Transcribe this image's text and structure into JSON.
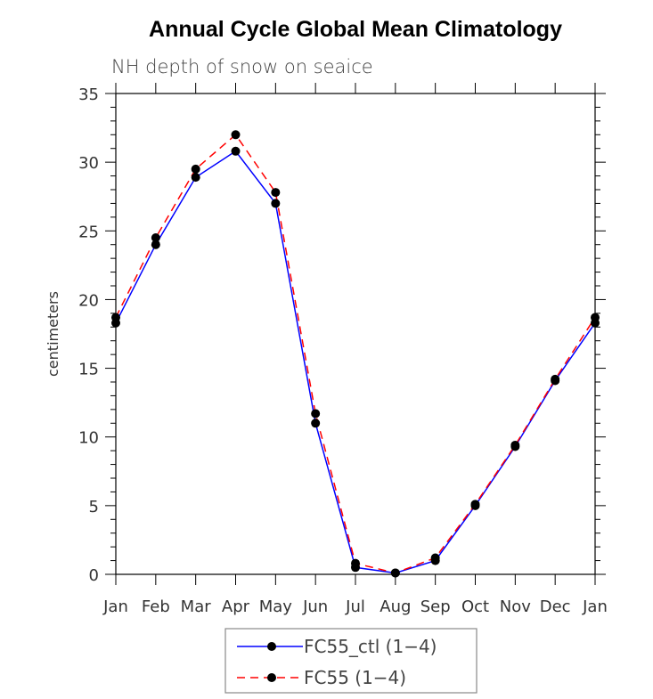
{
  "chart_data": {
    "type": "line",
    "title": "Annual Cycle Global Mean Climatology",
    "subtitle": "NH depth of snow on seaice",
    "xlabel": "",
    "ylabel": "centimeters",
    "ylim": [
      0,
      35
    ],
    "yticks": [
      "0",
      "5",
      "10",
      "15",
      "20",
      "25",
      "30",
      "35"
    ],
    "categories": [
      "Jan",
      "Feb",
      "Mar",
      "Apr",
      "May",
      "Jun",
      "Jul",
      "Aug",
      "Sep",
      "Oct",
      "Nov",
      "Dec",
      "Jan"
    ],
    "series": [
      {
        "name": "FC55_ctl (1-4)",
        "color": "#0000ff",
        "dash": "solid",
        "values": [
          18.3,
          24.0,
          28.9,
          30.8,
          27.0,
          11.0,
          0.5,
          0.1,
          1.0,
          5.0,
          9.3,
          14.1,
          18.3
        ]
      },
      {
        "name": "FC55 (1-4)",
        "color": "#ff0000",
        "dash": "dashed",
        "values": [
          18.7,
          24.5,
          29.5,
          32.0,
          27.8,
          11.7,
          0.8,
          0.1,
          1.2,
          5.1,
          9.4,
          14.2,
          18.7
        ]
      }
    ],
    "legend": {
      "placement": "bottom-center",
      "labels": [
        "FC55_ctl (1−4)",
        "FC55 (1−4)"
      ]
    },
    "grid": false
  }
}
